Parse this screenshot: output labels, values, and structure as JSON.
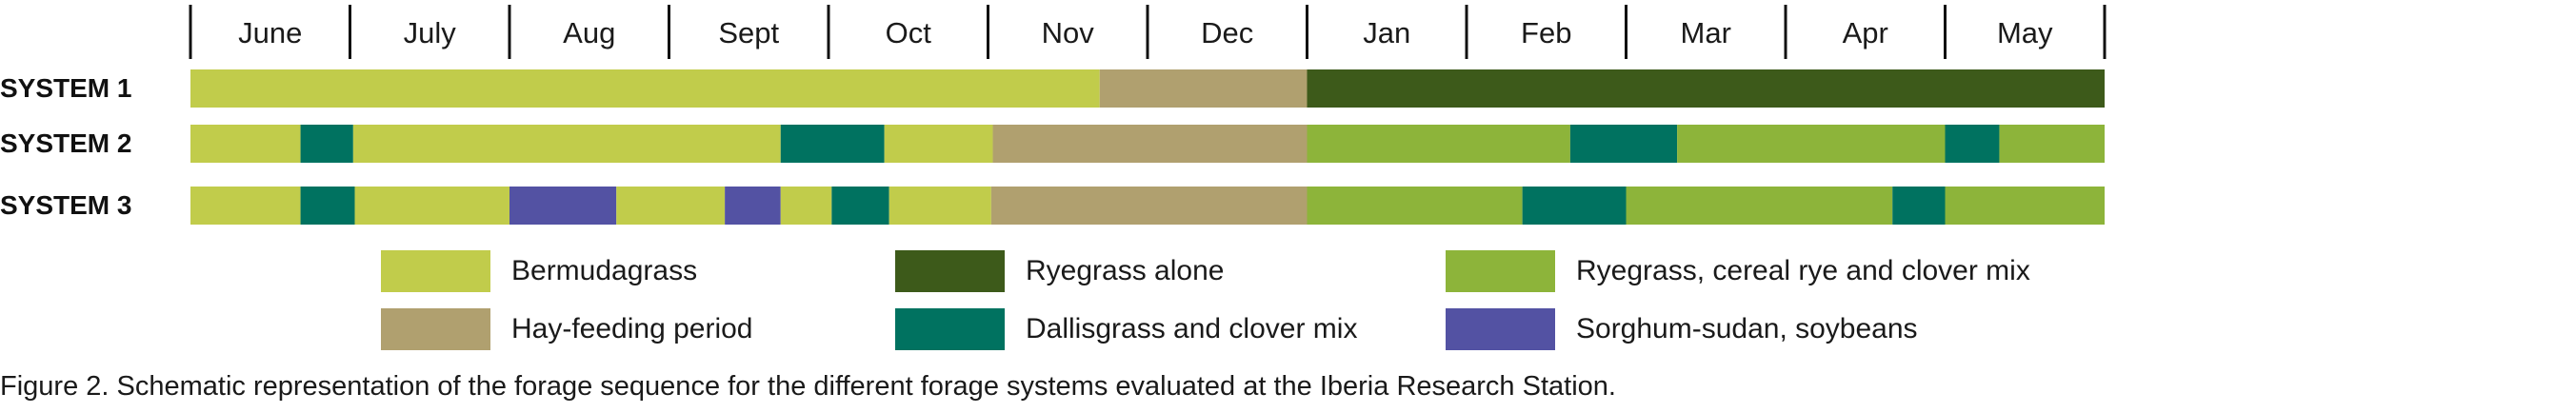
{
  "chart_data": {
    "type": "gantt",
    "months": [
      "June",
      "July",
      "Aug",
      "Sept",
      "Oct",
      "Nov",
      "Dec",
      "Jan",
      "Feb",
      "Mar",
      "Apr",
      "May"
    ],
    "categories": {
      "bermuda": {
        "label": "Bermudagrass",
        "color": "#c1cc4b"
      },
      "hay": {
        "label": "Hay-feeding period",
        "color": "#b0a06f"
      },
      "ryegrass_alone": {
        "label": "Ryegrass alone",
        "color": "#3d5a1a"
      },
      "dallis": {
        "label": "Dallisgrass and clover mix",
        "color": "#007260"
      },
      "ryemix": {
        "label": "Ryegrass, cereal rye and clover  mix",
        "color": "#8db43a"
      },
      "sorghum": {
        "label": "Sorghum-sudan, soybeans",
        "color": "#5352a3"
      }
    },
    "rows": [
      {
        "label": "SYSTEM 1",
        "segments": [
          {
            "cat": "bermuda",
            "start": 0,
            "end": 5.7
          },
          {
            "cat": "hay",
            "start": 5.7,
            "end": 7.0
          },
          {
            "cat": "ryegrass_alone",
            "start": 7.0,
            "end": 12.0
          }
        ]
      },
      {
        "label": "SYSTEM 2",
        "segments": [
          {
            "cat": "bermuda",
            "start": 0,
            "end": 0.69
          },
          {
            "cat": "dallis",
            "start": 0.69,
            "end": 1.02
          },
          {
            "cat": "bermuda",
            "start": 1.02,
            "end": 3.7
          },
          {
            "cat": "dallis",
            "start": 3.7,
            "end": 4.35
          },
          {
            "cat": "bermuda",
            "start": 4.35,
            "end": 5.03
          },
          {
            "cat": "hay",
            "start": 5.03,
            "end": 7.0
          },
          {
            "cat": "ryemix",
            "start": 7.0,
            "end": 8.65
          },
          {
            "cat": "dallis",
            "start": 8.65,
            "end": 9.32
          },
          {
            "cat": "ryemix",
            "start": 9.32,
            "end": 11.0
          },
          {
            "cat": "dallis",
            "start": 11.0,
            "end": 11.34
          },
          {
            "cat": "ryemix",
            "start": 11.34,
            "end": 12.0
          }
        ]
      },
      {
        "label": "SYSTEM 3",
        "segments": [
          {
            "cat": "bermuda",
            "start": 0,
            "end": 0.69
          },
          {
            "cat": "dallis",
            "start": 0.69,
            "end": 1.03
          },
          {
            "cat": "bermuda",
            "start": 1.03,
            "end": 2.0
          },
          {
            "cat": "sorghum",
            "start": 2.0,
            "end": 2.67
          },
          {
            "cat": "bermuda",
            "start": 2.67,
            "end": 3.35
          },
          {
            "cat": "sorghum",
            "start": 3.35,
            "end": 3.7
          },
          {
            "cat": "bermuda",
            "start": 3.7,
            "end": 4.02
          },
          {
            "cat": "dallis",
            "start": 4.02,
            "end": 4.38
          },
          {
            "cat": "bermuda",
            "start": 4.38,
            "end": 5.02
          },
          {
            "cat": "hay",
            "start": 5.02,
            "end": 7.0
          },
          {
            "cat": "ryemix",
            "start": 7.0,
            "end": 8.35
          },
          {
            "cat": "dallis",
            "start": 8.35,
            "end": 9.0
          },
          {
            "cat": "ryemix",
            "start": 9.0,
            "end": 10.67
          },
          {
            "cat": "dallis",
            "start": 10.67,
            "end": 11.0
          },
          {
            "cat": "ryemix",
            "start": 11.0,
            "end": 12.0
          }
        ]
      }
    ]
  },
  "legend": [
    {
      "label": "Bermudagrass",
      "color": "#c1cc4b"
    },
    {
      "label": "Ryegrass alone",
      "color": "#3d5a1a"
    },
    {
      "label": "Ryegrass, cereal rye and clover  mix",
      "color": "#8db43a"
    },
    {
      "label": "Hay-feeding period",
      "color": "#b0a06f"
    },
    {
      "label": "Dallisgrass and clover mix",
      "color": "#007260"
    },
    {
      "label": "Sorghum-sudan, soybeans",
      "color": "#5352a3"
    }
  ],
  "caption": "Figure 2. Schematic representation of the forage sequence for the different forage systems evaluated at the Iberia Research Station."
}
